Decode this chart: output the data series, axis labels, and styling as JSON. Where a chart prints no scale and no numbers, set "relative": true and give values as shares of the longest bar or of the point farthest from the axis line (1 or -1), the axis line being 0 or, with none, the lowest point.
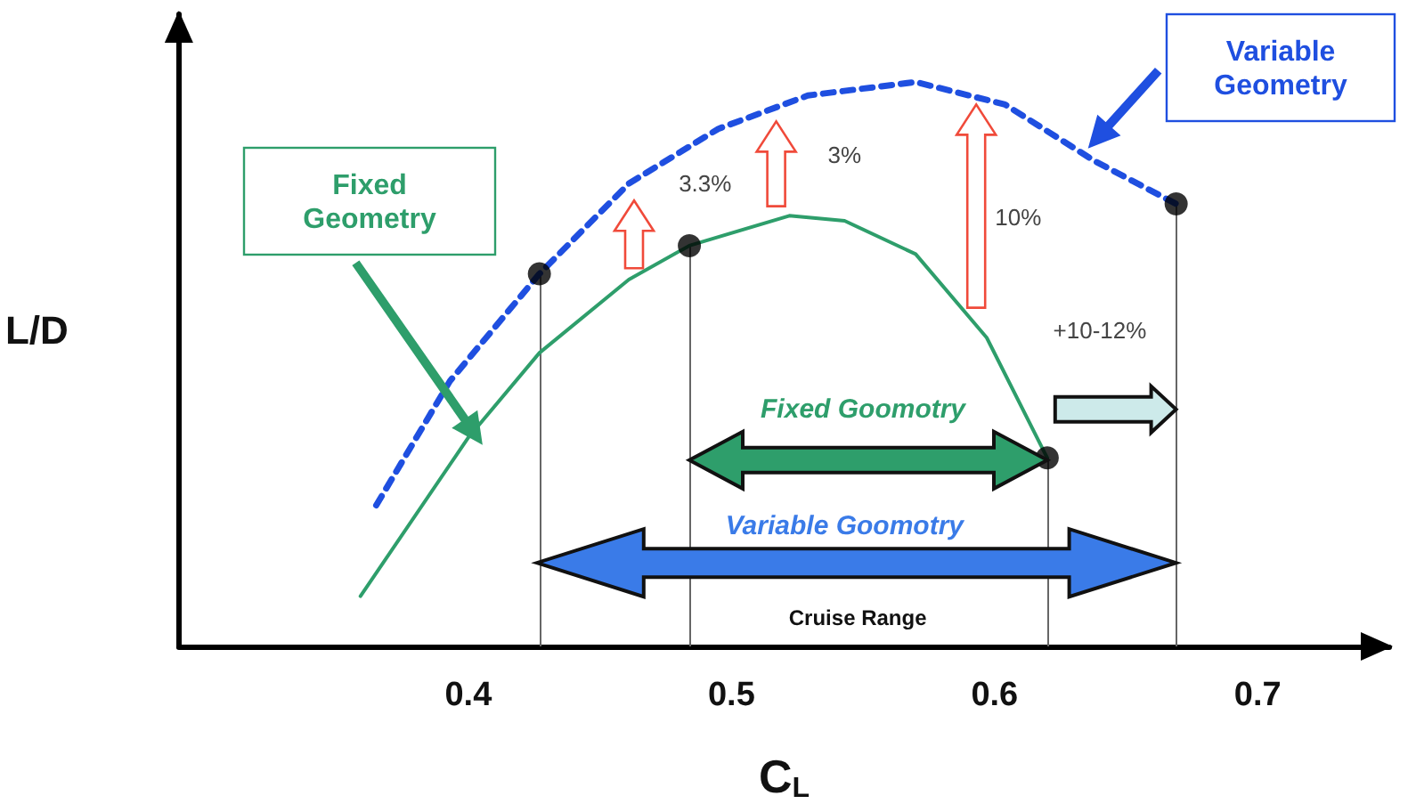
{
  "chart_data": {
    "type": "line",
    "xlabel": "C$_{L}$",
    "ylabel": "L/D",
    "relative": true,
    "xlim": [
      0.29,
      0.75
    ],
    "xticks": [
      0.4,
      0.5,
      0.6,
      0.7
    ],
    "legend": false,
    "grid": false,
    "series": [
      {
        "name": "Fixed Geometry",
        "color": "#2e9e6b",
        "line_style": "solid",
        "marker": "none",
        "x": [
          0.359,
          0.4,
          0.427,
          0.461,
          0.484,
          0.522,
          0.543,
          0.57,
          0.597,
          0.62
        ],
        "values": [
          0.089,
          0.37,
          0.52,
          0.65,
          0.71,
          0.763,
          0.754,
          0.695,
          0.547,
          0.334
        ]
      },
      {
        "name": "Variable Geometry",
        "color": "#1f4fe0",
        "line_style": "dashed",
        "marker": "none",
        "x": [
          0.365,
          0.393,
          0.427,
          0.461,
          0.495,
          0.529,
          0.57,
          0.604,
          0.638,
          0.669
        ],
        "values": [
          0.25,
          0.47,
          0.66,
          0.82,
          0.917,
          0.976,
          1.0,
          0.96,
          0.86,
          0.784
        ]
      },
      {
        "type": "scatter",
        "color": "#000000",
        "marker": "circle",
        "x": [
          0.427,
          0.484,
          0.62,
          0.669
        ],
        "values": [
          0.66,
          0.71,
          0.334,
          0.784
        ]
      }
    ],
    "ref_lines": [
      {
        "axis": "x",
        "value": 0.427,
        "color": "#666666"
      },
      {
        "axis": "x",
        "value": 0.484,
        "color": "#666666"
      },
      {
        "axis": "x",
        "value": 0.62,
        "color": "#666666"
      },
      {
        "axis": "x",
        "value": 0.669,
        "color": "#666666"
      }
    ],
    "annotations": [
      "3.3%",
      "3%",
      "10%",
      "+10-12%",
      "Fixed Goomotry",
      "Variable Goomotry",
      "Cruise Range"
    ]
  }
}
